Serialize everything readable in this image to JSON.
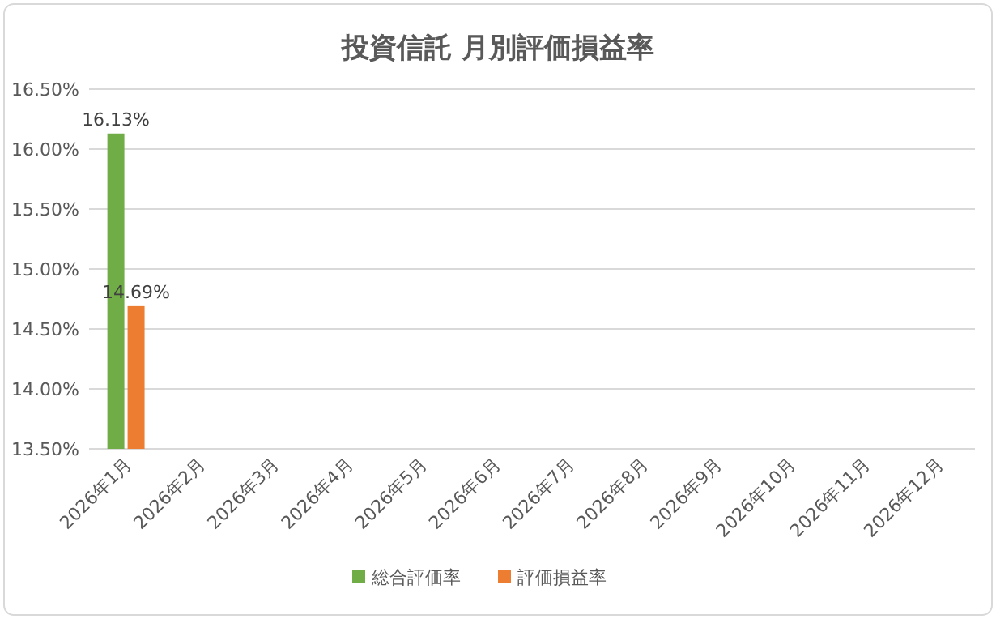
{
  "chart_data": {
    "type": "bar",
    "title": "投資信託 月別評価損益率",
    "categories": [
      "2026年1月",
      "2026年2月",
      "2026年3月",
      "2026年4月",
      "2026年5月",
      "2026年6月",
      "2026年7月",
      "2026年8月",
      "2026年9月",
      "2026年10月",
      "2026年11月",
      "2026年12月"
    ],
    "series": [
      {
        "name": "総合評価率",
        "color": "#70ad47",
        "values": [
          16.13,
          null,
          null,
          null,
          null,
          null,
          null,
          null,
          null,
          null,
          null,
          null
        ],
        "value_labels": [
          "16.13%",
          null,
          null,
          null,
          null,
          null,
          null,
          null,
          null,
          null,
          null,
          null
        ]
      },
      {
        "name": "評価損益率",
        "color": "#ed7d31",
        "values": [
          14.69,
          null,
          null,
          null,
          null,
          null,
          null,
          null,
          null,
          null,
          null,
          null
        ],
        "value_labels": [
          "14.69%",
          null,
          null,
          null,
          null,
          null,
          null,
          null,
          null,
          null,
          null,
          null
        ]
      }
    ],
    "ylim": [
      13.5,
      16.5
    ],
    "yticks": [
      {
        "value": 13.5,
        "label": "13.50%"
      },
      {
        "value": 14.0,
        "label": "14.00%"
      },
      {
        "value": 14.5,
        "label": "14.50%"
      },
      {
        "value": 15.0,
        "label": "15.00%"
      },
      {
        "value": 15.5,
        "label": "15.50%"
      },
      {
        "value": 16.0,
        "label": "16.00%"
      },
      {
        "value": 16.5,
        "label": "16.50%"
      }
    ],
    "grid": "y",
    "legend": "bottom"
  }
}
